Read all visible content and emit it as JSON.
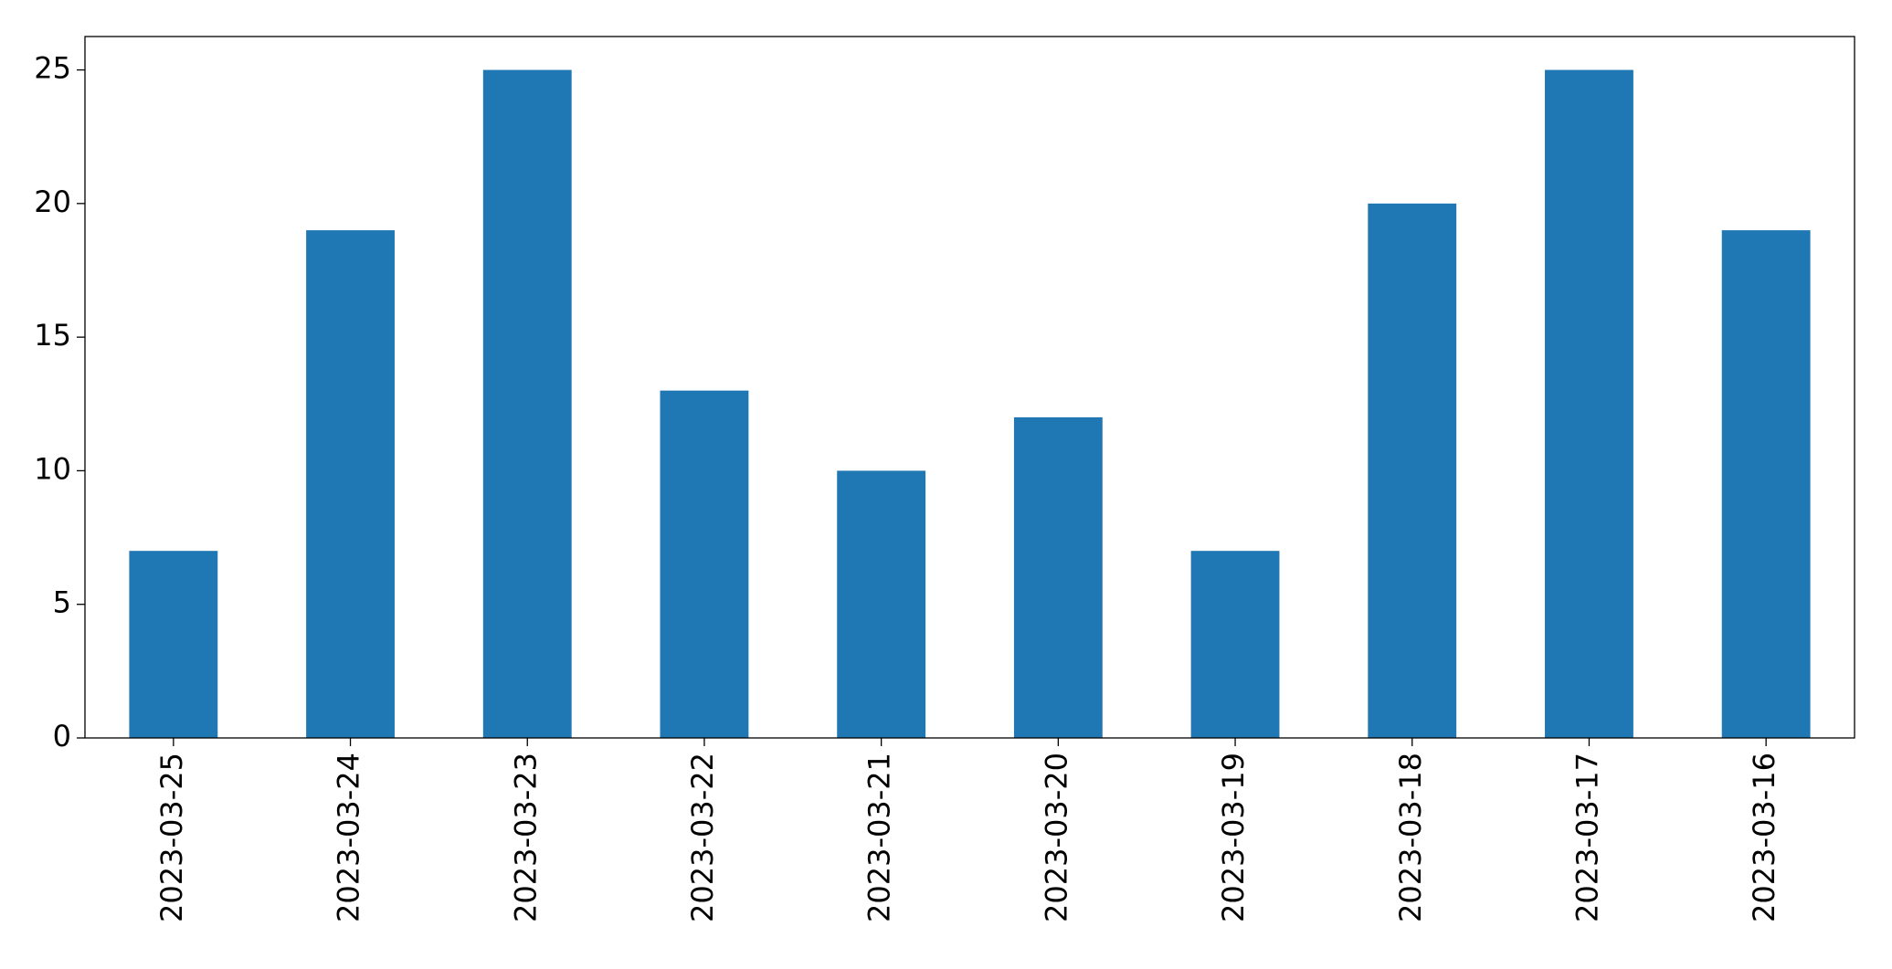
{
  "chart_data": {
    "type": "bar",
    "categories": [
      "2023-03-25",
      "2023-03-24",
      "2023-03-23",
      "2023-03-22",
      "2023-03-21",
      "2023-03-20",
      "2023-03-19",
      "2023-03-18",
      "2023-03-17",
      "2023-03-16"
    ],
    "values": [
      7,
      19,
      25,
      13,
      10,
      12,
      7,
      20,
      25,
      19
    ],
    "color": "#1f77b4",
    "ylim": [
      0,
      26.25
    ],
    "yticks": [
      0,
      5,
      10,
      15,
      20,
      25
    ],
    "grid": false
  }
}
